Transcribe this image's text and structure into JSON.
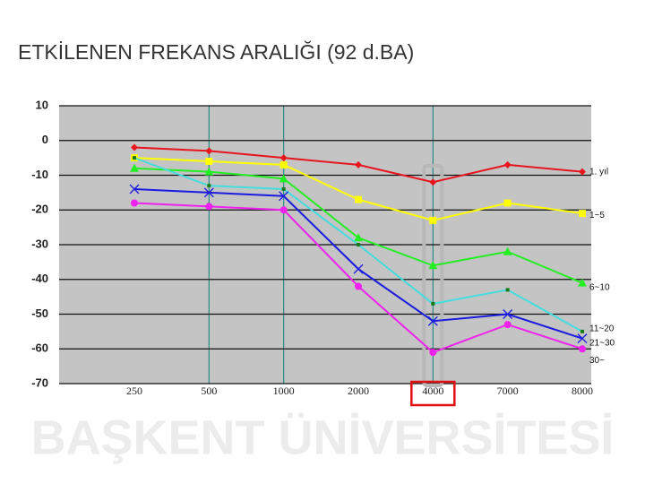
{
  "watermark": "BAŞKENT ÜNİVERSİTESİ",
  "chart_data": {
    "type": "line",
    "title": "ETKİLENEN FREKANS ARALIĞI (92 d.BA)",
    "categories": [
      "250",
      "500",
      "1000",
      "2000",
      "4000",
      "7000",
      "8000"
    ],
    "ylim": [
      -70,
      10
    ],
    "yticks": [
      10,
      0,
      -10,
      -20,
      -30,
      -40,
      -50,
      -60,
      -70
    ],
    "grid": true,
    "series": [
      {
        "name": "1. yıl",
        "color": "#e8141e",
        "marker": "diamond",
        "values": [
          -2,
          -3,
          -5,
          -7,
          -12,
          -7,
          -9
        ]
      },
      {
        "name": "1~5",
        "color": "#ffff00",
        "marker": "square",
        "values": [
          -5,
          -6,
          -7,
          -17,
          -23,
          -18,
          -21
        ]
      },
      {
        "name": "6~10",
        "color": "#22ee22",
        "marker": "triangle",
        "values": [
          -8,
          -9,
          -11,
          -28,
          -36,
          -32,
          -41
        ]
      },
      {
        "name": "11~20",
        "color": "#44dddd",
        "marker": "dot",
        "values": [
          -5,
          -13,
          -14,
          -30,
          -47,
          -43,
          -55
        ]
      },
      {
        "name": "21~30",
        "color": "#1b1be0",
        "marker": "x",
        "values": [
          -14,
          -15,
          -16,
          -37,
          -52,
          -50,
          -57
        ]
      },
      {
        "name": "30~",
        "color": "#ee22ee",
        "marker": "circle",
        "values": [
          -18,
          -19,
          -20,
          -42,
          -61,
          -53,
          -60
        ]
      }
    ]
  }
}
